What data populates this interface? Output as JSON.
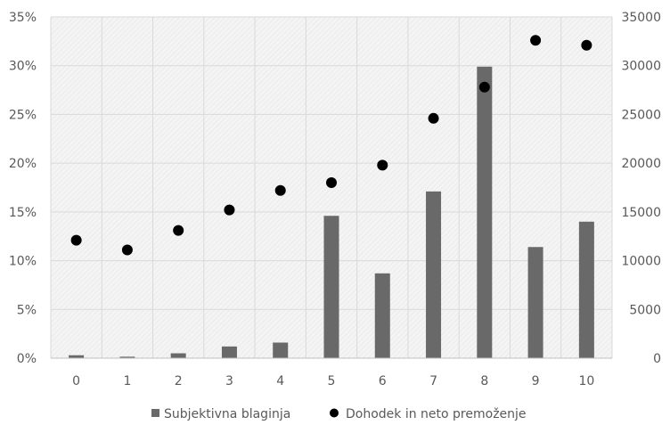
{
  "chart_data": {
    "type": "bar+scatter",
    "title": "",
    "categories": [
      "0",
      "1",
      "2",
      "3",
      "4",
      "5",
      "6",
      "7",
      "8",
      "9",
      "10"
    ],
    "series": [
      {
        "name": "Subjektivna blaginja",
        "type": "bar",
        "axis": "left",
        "color": "#696969",
        "values": [
          0.3,
          0.15,
          0.5,
          1.2,
          1.6,
          14.6,
          8.7,
          17.1,
          29.9,
          11.4,
          14.0
        ]
      },
      {
        "name": "Dohodek in neto premoženje",
        "type": "scatter",
        "axis": "right",
        "color": "#000000",
        "values": [
          12100,
          11100,
          13100,
          15200,
          17200,
          18000,
          19800,
          24600,
          27800,
          32600,
          32100
        ]
      }
    ],
    "y_left": {
      "ylim": [
        0,
        35
      ],
      "ticks": [
        "0%",
        "5%",
        "10%",
        "15%",
        "20%",
        "25%",
        "30%",
        "35%"
      ]
    },
    "y_right": {
      "ylim": [
        0,
        35000
      ],
      "ticks": [
        "0",
        "5000",
        "10000",
        "15000",
        "20000",
        "25000",
        "30000",
        "35000"
      ]
    },
    "grid": true,
    "legend": "bottom",
    "colors": {
      "plot_bg": "#f3f3f3",
      "grid": "#d9d9d9",
      "axis_text": "#595959"
    }
  }
}
